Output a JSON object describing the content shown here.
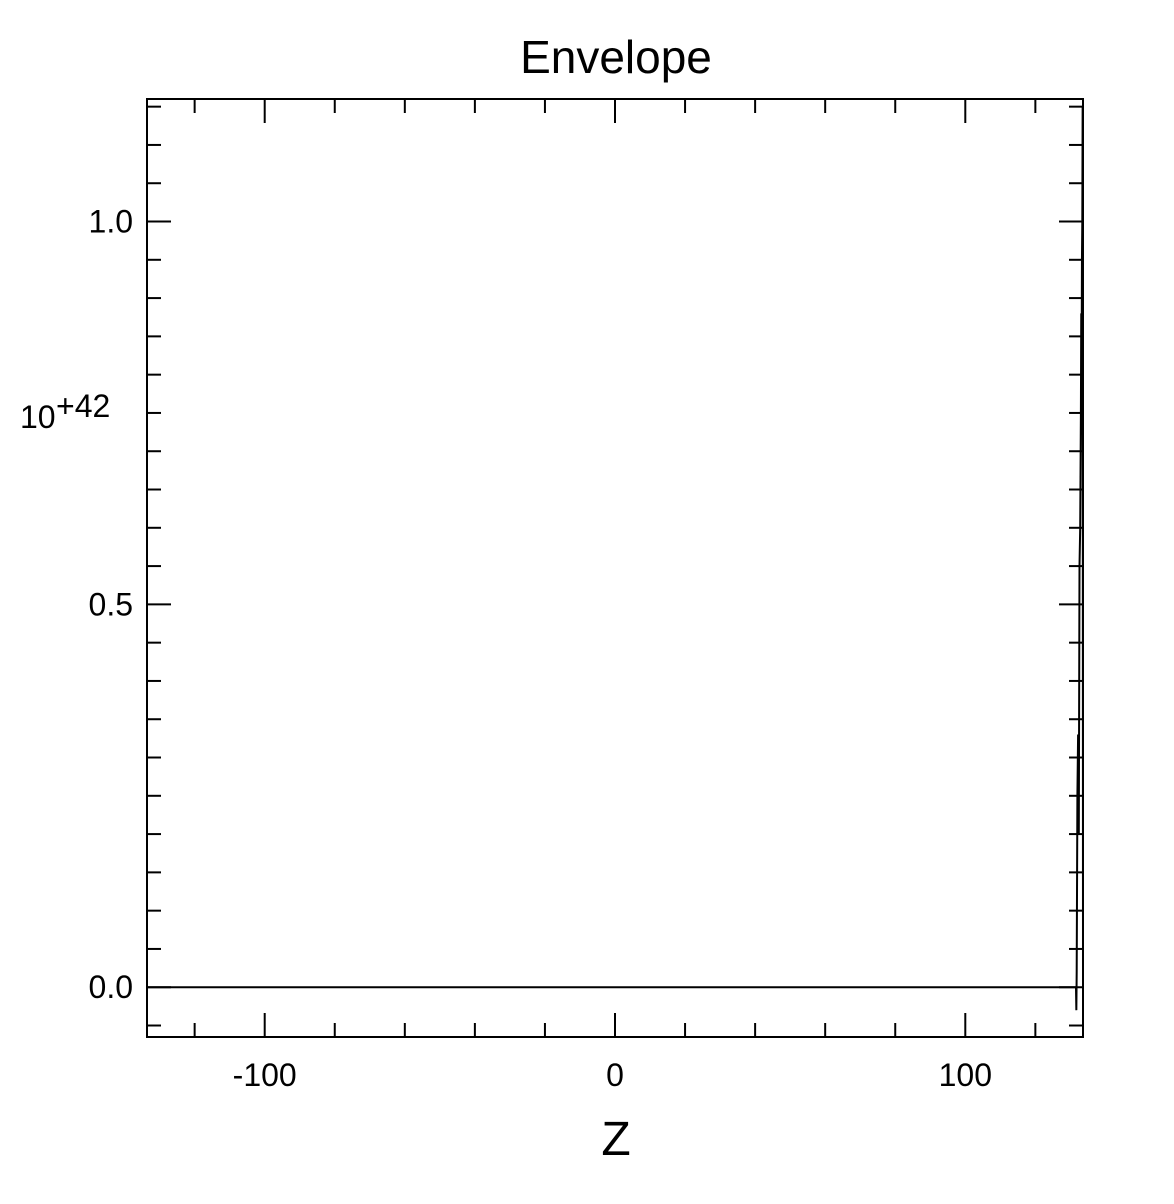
{
  "chart_data": {
    "type": "line",
    "title": "Envelope",
    "xlabel": "Z",
    "ylabel": "",
    "y_scale_label": {
      "base": "10",
      "exponent": "+42"
    },
    "xlim": [
      -133.6,
      133.6
    ],
    "ylim": [
      -0.065,
      1.16
    ],
    "x_ticks": [
      -100,
      0,
      100
    ],
    "x_tick_labels": [
      "-100",
      "0",
      "100"
    ],
    "x_minor_step": 20,
    "y_ticks": [
      0.0,
      0.5,
      1.0
    ],
    "y_tick_labels": [
      "0.0",
      "0.5",
      "1.0"
    ],
    "y_minor_step": 0.05,
    "grid": false,
    "legend": "none",
    "line_color": "#000000",
    "series": [
      {
        "x": [
          -133.6,
          131.6,
          131.7,
          131.8,
          132.0,
          132.2,
          132.4,
          132.6,
          132.8,
          133.0,
          133.1,
          133.2,
          133.3,
          133.4,
          133.5,
          133.6
        ],
        "y": [
          0.0,
          0.0,
          -0.03,
          0.02,
          0.25,
          0.33,
          0.2,
          0.55,
          0.6,
          0.75,
          0.88,
          0.8,
          0.95,
          1.0,
          1.15,
          0.0
        ]
      }
    ]
  }
}
